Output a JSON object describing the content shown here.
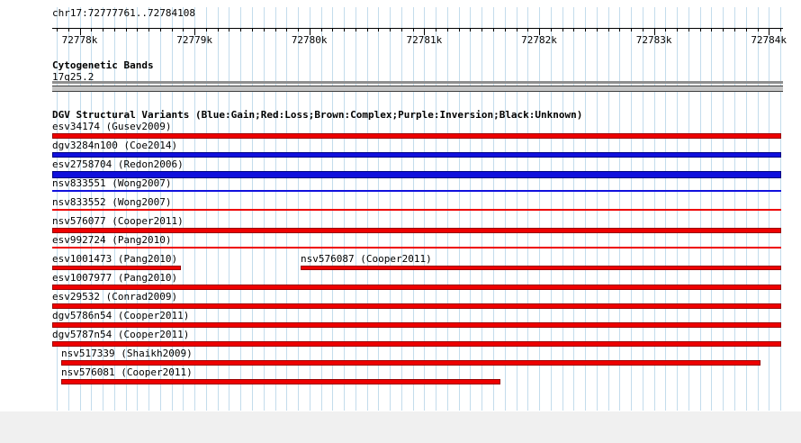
{
  "chart_data": {
    "type": "bar",
    "subtype": "genomic-interval-tracks",
    "region": "chr17:72777761..72784108",
    "view": {
      "start": 72777761,
      "end": 72784108,
      "grid_step": 100
    },
    "ruler": {
      "ticks": [
        {
          "bp": 72778000,
          "label": "72778k"
        },
        {
          "bp": 72779000,
          "label": "72779k"
        },
        {
          "bp": 72780000,
          "label": "72780k"
        },
        {
          "bp": 72781000,
          "label": "72781k"
        },
        {
          "bp": 72782000,
          "label": "72782k"
        },
        {
          "bp": 72783000,
          "label": "72783k"
        },
        {
          "bp": 72784000,
          "label": "72784k"
        }
      ]
    },
    "cytoband": {
      "title": "Cytogenetic Bands",
      "band": "17q25.2"
    },
    "dgv_title": "DGV Structural Variants (Blue:Gain;Red:Loss;Brown:Complex;Purple:Inversion;Black:Unknown)",
    "colors": {
      "red": {
        "fill": "#ee0000",
        "border": "#990000"
      },
      "blue": {
        "fill": "#1010dd",
        "border": "#000080"
      }
    },
    "legend_meaning": {
      "blue": "Gain",
      "red": "Loss",
      "brown": "Complex",
      "purple": "Inversion",
      "black": "Unknown"
    },
    "variants": {
      "rows": [
        {
          "features": [
            {
              "name": "esv34174 (Gusev2009)",
              "color": "red",
              "style": "thick",
              "start": 72777761,
              "end": 72784108
            }
          ]
        },
        {
          "features": [
            {
              "name": "dgv3284n100 (Coe2014)",
              "color": "blue",
              "style": "thick",
              "start": 72777761,
              "end": 72784108
            }
          ]
        },
        {
          "features": [
            {
              "name": "esv2758704 (Redon2006)",
              "color": "blue",
              "style": "xthick",
              "start": 72777761,
              "end": 72784108
            }
          ]
        },
        {
          "features": [
            {
              "name": "nsv833551 (Wong2007)",
              "color": "blue",
              "style": "thin",
              "start": 72777761,
              "end": 72784108
            }
          ]
        },
        {
          "features": [
            {
              "name": "nsv833552 (Wong2007)",
              "color": "red",
              "style": "thin",
              "start": 72777761,
              "end": 72784108
            }
          ]
        },
        {
          "features": [
            {
              "name": "nsv576077 (Cooper2011)",
              "color": "red",
              "style": "thick",
              "start": 72777761,
              "end": 72784108
            }
          ]
        },
        {
          "features": [
            {
              "name": "esv992724 (Pang2010)",
              "color": "red",
              "style": "thin",
              "start": 72777761,
              "end": 72784108
            }
          ]
        },
        {
          "features": [
            {
              "name": "esv1001473 (Pang2010)",
              "color": "red",
              "style": "medium",
              "start": 72777761,
              "end": 72778880
            },
            {
              "name": "nsv576087 (Cooper2011)",
              "color": "red",
              "style": "medium",
              "start": 72779920,
              "end": 72784108
            }
          ]
        },
        {
          "features": [
            {
              "name": "esv1007977 (Pang2010)",
              "color": "red",
              "style": "thick",
              "start": 72777761,
              "end": 72784108
            }
          ]
        },
        {
          "features": [
            {
              "name": "esv29532 (Conrad2009)",
              "color": "red",
              "style": "thick",
              "start": 72777761,
              "end": 72784108
            }
          ]
        },
        {
          "features": [
            {
              "name": "dgv5786n54 (Cooper2011)",
              "color": "red",
              "style": "thick",
              "start": 72777761,
              "end": 72784108
            }
          ]
        },
        {
          "features": [
            {
              "name": "dgv5787n54 (Cooper2011)",
              "color": "red",
              "style": "thick",
              "start": 72777761,
              "end": 72784108
            }
          ]
        },
        {
          "features": [
            {
              "name": "nsv517339 (Shaikh2009)",
              "color": "red",
              "style": "thick",
              "start": 72777840,
              "end": 72783930
            }
          ]
        },
        {
          "features": [
            {
              "name": "nsv576081 (Cooper2011)",
              "color": "red",
              "style": "thick",
              "start": 72777840,
              "end": 72781660
            }
          ]
        }
      ]
    }
  }
}
